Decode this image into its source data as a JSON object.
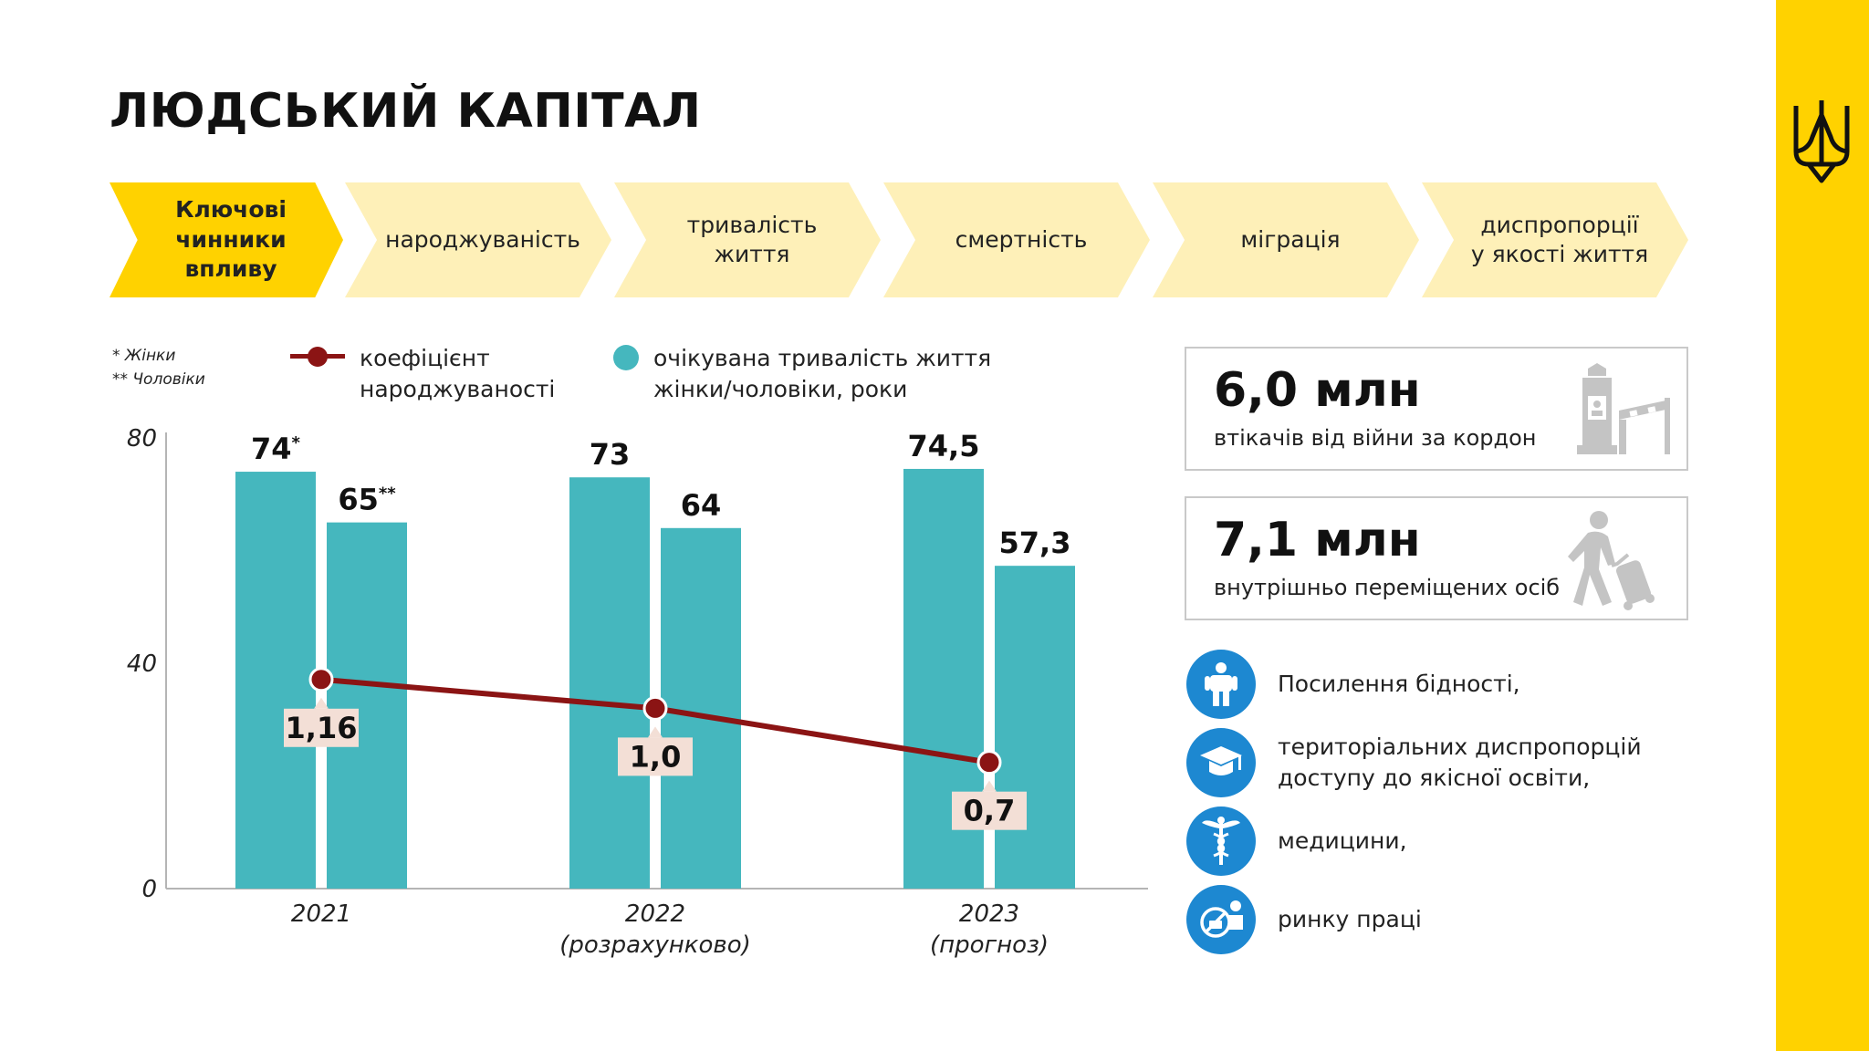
{
  "title": "ЛЮДСЬКИЙ КАПІТАЛ",
  "chevrons": [
    "Ключові\nчинники\nвпливу",
    "народжуваність",
    "тривалість\nжиття",
    "смертність",
    "міграція",
    "диспропорції\nу якості життя"
  ],
  "legend": {
    "note_women": "* Жінки",
    "note_men": "** Чоловіки",
    "line_label": "коефіцієнт\nнароджуваності",
    "bar_label": "очікувана тривалість життя\nжінки/чоловіки, роки"
  },
  "chart_data": {
    "type": "bar",
    "categories": [
      "2021",
      "2022",
      "2023"
    ],
    "category_sublabels": [
      "",
      "(розрахунково)",
      "(прогноз)"
    ],
    "ylim": [
      0,
      80
    ],
    "yticks": [
      "0",
      "40",
      "80"
    ],
    "series": [
      {
        "values": [
          74,
          73,
          74.5
        ],
        "labels": [
          "74",
          "73",
          "74,5"
        ],
        "label_marks": [
          "*",
          "",
          ""
        ]
      },
      {
        "values": [
          65,
          64,
          57.3
        ],
        "labels": [
          "65",
          "64",
          "57,3"
        ],
        "label_marks": [
          "**",
          "",
          ""
        ]
      }
    ],
    "line": {
      "type": "line",
      "values": [
        1.16,
        1.0,
        0.7
      ],
      "labels": [
        "1,16",
        "1,0",
        "0,7"
      ]
    },
    "colors": {
      "bar": "#45B7BE",
      "line": "#8B1414",
      "line_label_bg": "#F3DFD6"
    }
  },
  "stats": [
    {
      "value": "6,0 млн",
      "label": "втікачів від війни за кордон",
      "icon": "border-checkpoint-icon"
    },
    {
      "value": "7,1 млн",
      "label": "внутрішньо переміщених осіб",
      "icon": "traveler-with-luggage-icon"
    }
  ],
  "issues": [
    {
      "text": "Посилення бідності,",
      "icon": "person-icon"
    },
    {
      "text": "територіальних диспропорцій\nдоступу до якісної освіти,",
      "icon": "graduation-cap-icon"
    },
    {
      "text": "медицини,",
      "icon": "caduceus-icon"
    },
    {
      "text": "ринку праці",
      "icon": "no-work-icon"
    }
  ],
  "colors": {
    "accent_yellow": "#FFD200",
    "chevron_light": "#FEF0B8",
    "icon_blue": "#1D88D1"
  }
}
